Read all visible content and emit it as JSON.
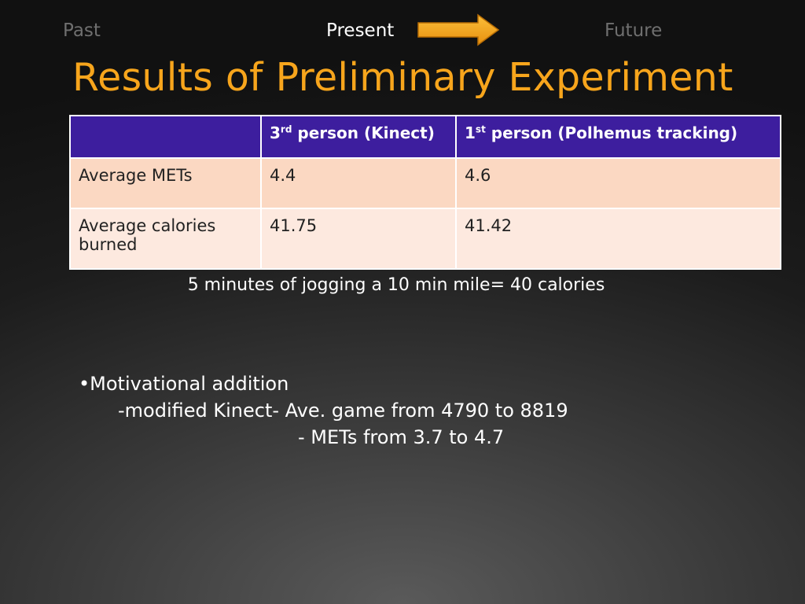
{
  "nav": {
    "past": "Past",
    "present": "Present",
    "future": "Future",
    "arrow_color": "#f7a51c"
  },
  "title": "Results of Preliminary Experiment",
  "table": {
    "headers": [
      {
        "text": "",
        "sup": "",
        "rest": ""
      },
      {
        "text": "3",
        "sup": "rd",
        "rest": " person (Kinect)"
      },
      {
        "text": "1",
        "sup": "st",
        "rest": " person (Polhemus tracking)"
      }
    ],
    "rows": [
      [
        "Average METs",
        "4.4",
        "4.6"
      ],
      [
        "Average calories burned",
        "41.75",
        "41.42"
      ]
    ],
    "header_color": "#3d1e9e",
    "row_colors": [
      "#fbd8c2",
      "#fde9df"
    ]
  },
  "note": "5 minutes of jogging a 10 min mile= 40 calories",
  "bullets": [
    "•Motivational addition",
    "-modified Kinect- Ave. game from 4790 to 8819",
    "- METs from 3.7 to 4.7"
  ],
  "title_color": "#f7a51c"
}
